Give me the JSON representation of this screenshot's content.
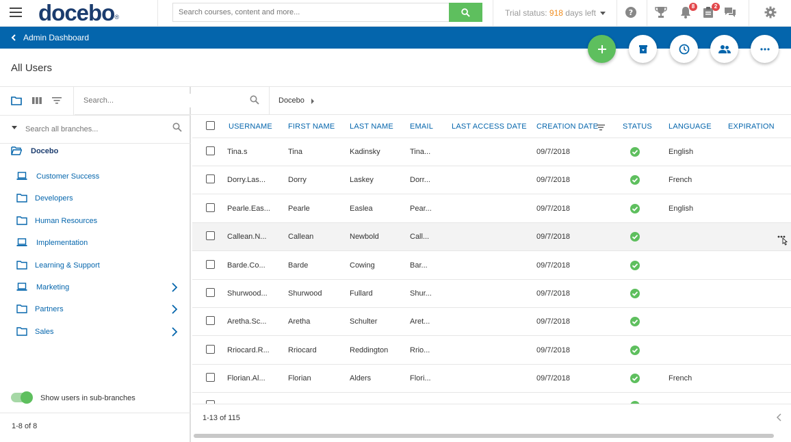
{
  "header": {
    "logo": "docebo",
    "logo_mark": "®",
    "search_placeholder": "Search courses, content and more...",
    "trial_prefix": "Trial status: ",
    "trial_days": "918",
    "trial_suffix": " days left",
    "notifications_badge": "8",
    "assignments_badge": "2",
    "icons": [
      "menu-icon",
      "search-icon",
      "help-icon",
      "trophy-icon",
      "bell-icon",
      "clipboard-icon",
      "chat-icon",
      "gear-icon"
    ]
  },
  "breadcrumb": {
    "label": "Admin Dashboard"
  },
  "page": {
    "title": "All Users"
  },
  "fabs": [
    "add-icon",
    "archive-icon",
    "clock-icon",
    "users-icon",
    "more-icon"
  ],
  "left_panel": {
    "search_placeholder": "Search all branches...",
    "root": "Docebo",
    "branches": [
      {
        "label": "Customer Success",
        "icon": "laptop-icon",
        "expandable": false
      },
      {
        "label": "Developers",
        "icon": "folder-icon",
        "expandable": false
      },
      {
        "label": "Human Resources",
        "icon": "folder-icon",
        "expandable": false
      },
      {
        "label": "Implementation",
        "icon": "laptop-icon",
        "expandable": false
      },
      {
        "label": "Learning & Support",
        "icon": "folder-icon",
        "expandable": false
      },
      {
        "label": "Marketing",
        "icon": "laptop-icon",
        "expandable": true
      },
      {
        "label": "Partners",
        "icon": "folder-icon",
        "expandable": true
      },
      {
        "label": "Sales",
        "icon": "folder-icon",
        "expandable": true
      }
    ],
    "toggle_label": "Show users in sub-branches",
    "count": "1-8 of 8"
  },
  "main": {
    "search_placeholder": "Search...",
    "crumb": "Docebo",
    "columns": [
      "USERNAME",
      "FIRST NAME",
      "LAST NAME",
      "EMAIL",
      "LAST ACCESS DATE",
      "CREATION DATE",
      "STATUS",
      "LANGUAGE",
      "EXPIRATION"
    ],
    "rows": [
      {
        "username": "Tina.s",
        "first": "Tina",
        "last": "Kadinsky",
        "email": "Tina...",
        "last_access": "",
        "created": "09/7/2018",
        "status": "active",
        "language": "English",
        "expiration": ""
      },
      {
        "username": "Dorry.Las...",
        "first": "Dorry",
        "last": "Laskey",
        "email": "Dorr...",
        "last_access": "",
        "created": "09/7/2018",
        "status": "active",
        "language": "French",
        "expiration": ""
      },
      {
        "username": "Pearle.Eas...",
        "first": "Pearle",
        "last": "Easlea",
        "email": "Pear...",
        "last_access": "",
        "created": "09/7/2018",
        "status": "active",
        "language": "English",
        "expiration": ""
      },
      {
        "username": "Callean.N...",
        "first": "Callean",
        "last": "Newbold",
        "email": "Call...",
        "last_access": "",
        "created": "09/7/2018",
        "status": "active",
        "language": "",
        "expiration": ""
      },
      {
        "username": "Barde.Co...",
        "first": "Barde",
        "last": "Cowing",
        "email": "Bar...",
        "last_access": "",
        "created": "09/7/2018",
        "status": "active",
        "language": "",
        "expiration": ""
      },
      {
        "username": "Shurwood...",
        "first": "Shurwood",
        "last": "Fullard",
        "email": "Shur...",
        "last_access": "",
        "created": "09/7/2018",
        "status": "active",
        "language": "",
        "expiration": ""
      },
      {
        "username": "Aretha.Sc...",
        "first": "Aretha",
        "last": "Schulter",
        "email": "Aret...",
        "last_access": "",
        "created": "09/7/2018",
        "status": "active",
        "language": "",
        "expiration": ""
      },
      {
        "username": "Rriocard.R...",
        "first": "Rriocard",
        "last": "Reddington",
        "email": "Rrio...",
        "last_access": "",
        "created": "09/7/2018",
        "status": "active",
        "language": "",
        "expiration": ""
      },
      {
        "username": "Florian.Al...",
        "first": "Florian",
        "last": "Alders",
        "email": "Flori...",
        "last_access": "",
        "created": "09/7/2018",
        "status": "active",
        "language": "French",
        "expiration": ""
      }
    ],
    "pager": "1-13 of 115"
  },
  "colors": {
    "brand_blue": "#0465ac",
    "logo_navy": "#1b3c6e",
    "green": "#5ebf5e",
    "badge_red": "#e2474b",
    "trial_orange": "#f08c1d"
  }
}
